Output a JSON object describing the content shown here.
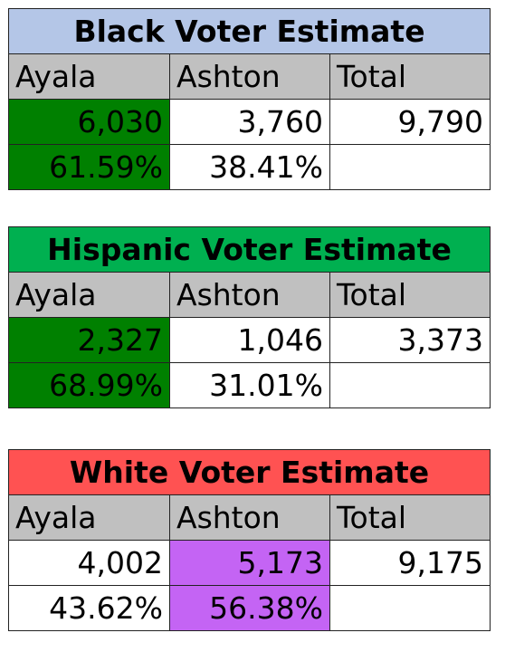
{
  "colors": {
    "black_header": "#b4c6e7",
    "hispanic_header": "#00b050",
    "white_header": "#ff5252",
    "column_header": "#c0c0c0",
    "ayala_win": "#008000",
    "ashton_win": "#c464f4"
  },
  "tables": [
    {
      "title": "Black Voter Estimate",
      "headers": [
        "Ayala",
        "Ashton",
        "Total"
      ],
      "counts": [
        "6,030",
        "3,760",
        "9,790"
      ],
      "percents": [
        "61.59%",
        "38.41%",
        ""
      ],
      "winner": "Ayala"
    },
    {
      "title": "Hispanic Voter Estimate",
      "headers": [
        "Ayala",
        "Ashton",
        "Total"
      ],
      "counts": [
        "2,327",
        "1,046",
        "3,373"
      ],
      "percents": [
        "68.99%",
        "31.01%",
        ""
      ],
      "winner": "Ayala"
    },
    {
      "title": "White Voter Estimate",
      "headers": [
        "Ayala",
        "Ashton",
        "Total"
      ],
      "counts": [
        "4,002",
        "5,173",
        "9,175"
      ],
      "percents": [
        "43.62%",
        "56.38%",
        ""
      ],
      "winner": "Ashton"
    }
  ]
}
